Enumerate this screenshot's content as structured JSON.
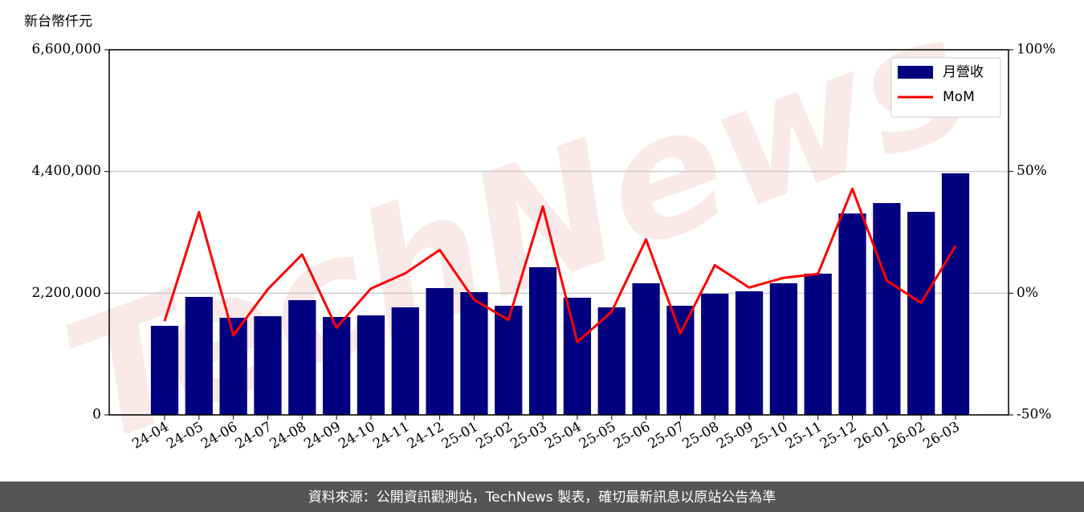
{
  "chart_data": {
    "type": "bar",
    "watermark": "TechNews",
    "y_label": "新台幣仟元",
    "footer": "資料來源：公開資訊觀測站，TechNews 製表，確切最新訊息以原站公告為準",
    "categories": [
      "24-04",
      "24-05",
      "24-06",
      "24-07",
      "24-08",
      "24-09",
      "24-10",
      "24-11",
      "24-12",
      "25-01",
      "25-02",
      "25-03",
      "25-04",
      "25-05",
      "25-06",
      "25-07",
      "25-08",
      "25-09",
      "25-10",
      "25-11",
      "25-12",
      "26-01",
      "26-02",
      "26-03"
    ],
    "series": [
      {
        "name": "月營收",
        "type": "bar",
        "color": "#000080",
        "values": [
          1610000,
          2132000,
          1755000,
          1784000,
          2074000,
          1770000,
          1799000,
          1944000,
          2292000,
          2219000,
          1973000,
          2669000,
          2118000,
          1944000,
          2379000,
          1973000,
          2190000,
          2234000,
          2379000,
          2553000,
          3641000,
          3829000,
          3670000,
          4366000
        ]
      },
      {
        "name": "MoM",
        "type": "line",
        "axis": "y2",
        "color": "#ff0000",
        "values": [
          -11.5,
          33.3,
          -17.3,
          1.6,
          15.9,
          -14.2,
          1.9,
          8.2,
          17.8,
          -2.7,
          -11,
          35.6,
          -20.1,
          -7.6,
          22.1,
          -16.5,
          11.5,
          2.3,
          6.3,
          7.9,
          42.9,
          5.2,
          -4.0,
          19.5
        ]
      }
    ],
    "ylim": [
      0,
      6600000
    ],
    "yticks": [
      0,
      {
        "value": 2200000,
        "label": "2,200,000"
      },
      {
        "value": 4400000,
        "label": "4,400,000"
      },
      {
        "value": 6600000,
        "label": "6,600,000"
      }
    ],
    "y2lim": [
      -50,
      100
    ],
    "y2ticks": [
      {
        "value": -50,
        "label": "-50%"
      },
      {
        "value": 0,
        "label": "0%"
      },
      {
        "value": 50,
        "label": "50%"
      },
      {
        "value": 100,
        "label": "100%"
      }
    ],
    "grid": true,
    "legend": "upper right"
  }
}
